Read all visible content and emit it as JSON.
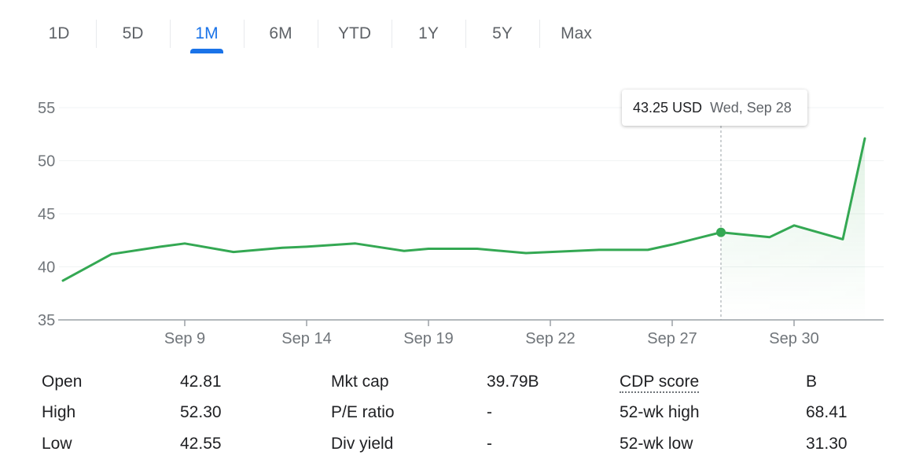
{
  "tabs": [
    {
      "label": "1D",
      "active": false
    },
    {
      "label": "5D",
      "active": false
    },
    {
      "label": "1M",
      "active": true
    },
    {
      "label": "6M",
      "active": false
    },
    {
      "label": "YTD",
      "active": false
    },
    {
      "label": "1Y",
      "active": false
    },
    {
      "label": "5Y",
      "active": false
    },
    {
      "label": "Max",
      "active": false
    }
  ],
  "tooltip": {
    "price": "43.25 USD",
    "date": "Wed, Sep 28"
  },
  "colors": {
    "line": "#34a853",
    "active_tab": "#1a73e8",
    "grid": "#f1f3f4",
    "axis": "#9aa0a6"
  },
  "chart_data": {
    "type": "line",
    "title": "",
    "xlabel": "",
    "ylabel": "",
    "ylim": [
      35,
      55
    ],
    "yticks": [
      35,
      40,
      45,
      50,
      55
    ],
    "x_tick_labels": [
      "Sep 9",
      "Sep 14",
      "Sep 19",
      "Sep 22",
      "Sep 27",
      "Sep 30"
    ],
    "x_tick_index": [
      5,
      10,
      15,
      20,
      25,
      30
    ],
    "grid": true,
    "series": [
      {
        "values": [
          38.7,
          41.2,
          41.9,
          42.2,
          41.4,
          41.8,
          41.9,
          42.2,
          41.5,
          41.7,
          41.7,
          41.3,
          41.4,
          41.6,
          41.6,
          42.1,
          43.25,
          42.8,
          43.9,
          42.6,
          52.1
        ],
        "point_index": [
          0,
          2,
          4,
          5,
          7,
          9,
          10,
          12,
          14,
          15,
          17,
          19,
          20,
          22,
          24,
          25,
          27,
          29,
          30,
          32,
          33
        ]
      }
    ],
    "highlight": {
      "value": 43.25,
      "date": "Wed, Sep 28"
    }
  },
  "stats": [
    [
      {
        "label": "Open",
        "value": "42.81"
      },
      {
        "label": "Mkt cap",
        "value": "39.79B"
      },
      {
        "label": "CDP score",
        "value": "B"
      }
    ],
    [
      {
        "label": "High",
        "value": "52.30"
      },
      {
        "label": "P/E ratio",
        "value": "-"
      },
      {
        "label": "52-wk high",
        "value": "68.41"
      }
    ],
    [
      {
        "label": "Low",
        "value": "42.55"
      },
      {
        "label": "Div yield",
        "value": "-"
      },
      {
        "label": "52-wk low",
        "value": "31.30"
      }
    ]
  ]
}
